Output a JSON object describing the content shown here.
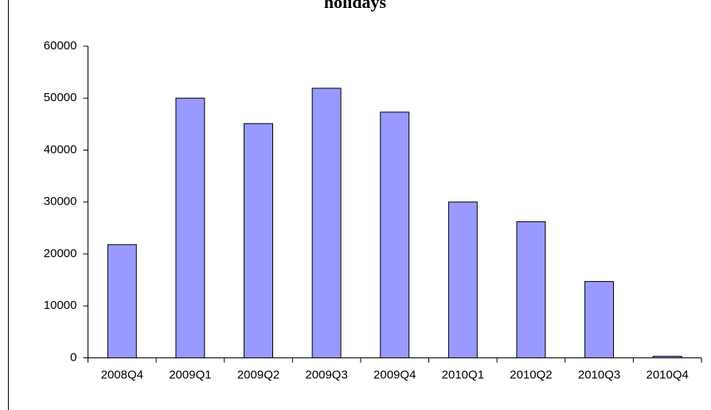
{
  "chart_data": {
    "type": "bar",
    "title": "holidays",
    "categories": [
      "2008Q4",
      "2009Q1",
      "2009Q2",
      "2009Q3",
      "2009Q4",
      "2010Q1",
      "2010Q2",
      "2010Q3",
      "2010Q4"
    ],
    "values": [
      21800,
      50000,
      45100,
      51900,
      47300,
      30000,
      26200,
      14700,
      300
    ],
    "color": "#9999ff",
    "ylim": [
      0,
      60000
    ],
    "yticks": [
      0,
      10000,
      20000,
      30000,
      40000,
      50000,
      60000
    ],
    "grid": false
  }
}
